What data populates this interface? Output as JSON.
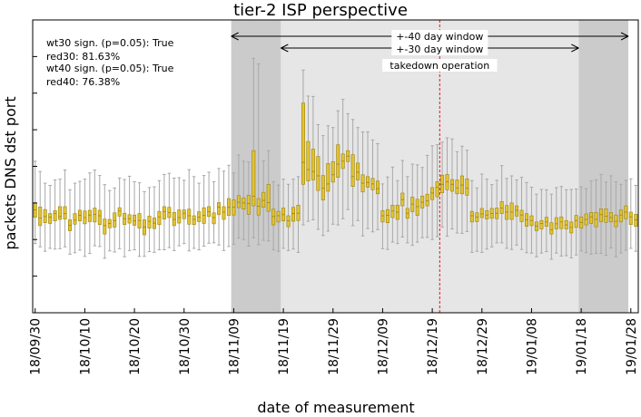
{
  "chart_data": {
    "type": "boxplot",
    "title": "tier-2 ISP perspective",
    "xlabel": "date of measurement",
    "ylabel": "packets DNS dst port",
    "x_tick_labels": [
      "18/09/30",
      "18/10/10",
      "18/10/20",
      "18/10/30",
      "18/11/09",
      "18/11/19",
      "18/11/29",
      "18/12/09",
      "18/12/19",
      "18/12/29",
      "19/01/08",
      "19/01/18",
      "19/01/28"
    ],
    "start_date": "2018-09-30",
    "days": 122,
    "ylim": [
      0,
      8
    ],
    "y_tick_values": [
      1,
      2,
      3,
      4,
      5,
      6,
      7,
      8
    ],
    "y_tick_labels_visible": false,
    "stats_text": [
      "wt30 sign. (p=0.05): True",
      "red30: 81.63%",
      "wt40 sign. (p=0.05): True",
      "red40: 76.38%"
    ],
    "windows": {
      "window_40": {
        "label": "+-40 day window",
        "start_day": 39.5,
        "end_day": 119.5
      },
      "window_30": {
        "label": "+-30 day window",
        "start_day": 49.5,
        "end_day": 109.5
      }
    },
    "event": {
      "label": "takedown operation",
      "day": 81.5
    },
    "colors": {
      "box_fill": "#e2c231",
      "box_edge": "#9a8410",
      "whisker": "#a8a8a8",
      "band_30": "#e6e6e6",
      "band_40_outer": "#cbcbcb",
      "event_line": "#e8161d"
    },
    "series": [
      {
        "day": 0,
        "q1": 2.61,
        "median": 2.81,
        "q3": 2.99,
        "low": 1.89,
        "high": 4.14
      },
      {
        "day": 1,
        "q1": 2.38,
        "median": 2.59,
        "q3": 2.89,
        "low": 1.8,
        "high": 3.86
      },
      {
        "day": 2,
        "q1": 2.46,
        "median": 2.63,
        "q3": 2.82,
        "low": 1.68,
        "high": 3.54
      },
      {
        "day": 3,
        "q1": 2.44,
        "median": 2.61,
        "q3": 2.71,
        "low": 1.76,
        "high": 3.48
      },
      {
        "day": 4,
        "q1": 2.51,
        "median": 2.71,
        "q3": 2.79,
        "low": 1.74,
        "high": 3.63
      },
      {
        "day": 5,
        "q1": 2.55,
        "median": 2.63,
        "q3": 2.9,
        "low": 1.75,
        "high": 3.65
      },
      {
        "day": 6,
        "q1": 2.56,
        "median": 2.71,
        "q3": 2.9,
        "low": 1.8,
        "high": 3.9
      },
      {
        "day": 7,
        "q1": 2.24,
        "median": 2.39,
        "q3": 2.54,
        "low": 1.6,
        "high": 3.36
      },
      {
        "day": 8,
        "q1": 2.42,
        "median": 2.53,
        "q3": 2.71,
        "low": 1.64,
        "high": 3.54
      },
      {
        "day": 9,
        "q1": 2.51,
        "median": 2.66,
        "q3": 2.8,
        "low": 1.71,
        "high": 3.59
      },
      {
        "day": 10,
        "q1": 2.43,
        "median": 2.6,
        "q3": 2.78,
        "low": 1.54,
        "high": 3.65
      },
      {
        "day": 11,
        "q1": 2.49,
        "median": 2.67,
        "q3": 2.8,
        "low": 1.62,
        "high": 3.82
      },
      {
        "day": 12,
        "q1": 2.48,
        "median": 2.69,
        "q3": 2.86,
        "low": 1.83,
        "high": 3.9
      },
      {
        "day": 13,
        "q1": 2.41,
        "median": 2.65,
        "q3": 2.8,
        "low": 1.81,
        "high": 3.75
      },
      {
        "day": 14,
        "q1": 2.15,
        "median": 2.38,
        "q3": 2.56,
        "low": 1.49,
        "high": 3.5
      },
      {
        "day": 15,
        "q1": 2.32,
        "median": 2.44,
        "q3": 2.55,
        "low": 1.69,
        "high": 3.34
      },
      {
        "day": 16,
        "q1": 2.34,
        "median": 2.52,
        "q3": 2.73,
        "low": 1.66,
        "high": 3.41
      },
      {
        "day": 17,
        "q1": 2.64,
        "median": 2.78,
        "q3": 2.87,
        "low": 1.75,
        "high": 3.68
      },
      {
        "day": 18,
        "q1": 2.41,
        "median": 2.57,
        "q3": 2.72,
        "low": 1.53,
        "high": 3.64
      },
      {
        "day": 19,
        "q1": 2.45,
        "median": 2.57,
        "q3": 2.68,
        "low": 1.7,
        "high": 3.73
      },
      {
        "day": 20,
        "q1": 2.39,
        "median": 2.51,
        "q3": 2.67,
        "low": 1.72,
        "high": 3.58
      },
      {
        "day": 21,
        "q1": 2.31,
        "median": 2.52,
        "q3": 2.71,
        "low": 1.54,
        "high": 3.55
      },
      {
        "day": 22,
        "q1": 2.13,
        "median": 2.34,
        "q3": 2.54,
        "low": 1.54,
        "high": 3.31
      },
      {
        "day": 23,
        "q1": 2.31,
        "median": 2.5,
        "q3": 2.64,
        "low": 1.67,
        "high": 3.42
      },
      {
        "day": 24,
        "q1": 2.3,
        "median": 2.45,
        "q3": 2.59,
        "low": 1.65,
        "high": 3.44
      },
      {
        "day": 25,
        "q1": 2.41,
        "median": 2.62,
        "q3": 2.77,
        "low": 1.72,
        "high": 3.61
      },
      {
        "day": 26,
        "q1": 2.56,
        "median": 2.77,
        "q3": 2.9,
        "low": 1.72,
        "high": 3.78
      },
      {
        "day": 27,
        "q1": 2.6,
        "median": 2.74,
        "q3": 2.88,
        "low": 1.78,
        "high": 3.81
      },
      {
        "day": 28,
        "q1": 2.38,
        "median": 2.55,
        "q3": 2.74,
        "low": 1.7,
        "high": 3.68
      },
      {
        "day": 29,
        "q1": 2.45,
        "median": 2.6,
        "q3": 2.81,
        "low": 1.83,
        "high": 3.69
      },
      {
        "day": 30,
        "q1": 2.57,
        "median": 2.72,
        "q3": 2.81,
        "low": 1.89,
        "high": 3.62
      },
      {
        "day": 31,
        "q1": 2.42,
        "median": 2.65,
        "q3": 2.83,
        "low": 1.69,
        "high": 3.91
      },
      {
        "day": 32,
        "q1": 2.41,
        "median": 2.55,
        "q3": 2.65,
        "low": 1.76,
        "high": 3.72
      },
      {
        "day": 33,
        "q1": 2.49,
        "median": 2.61,
        "q3": 2.76,
        "low": 1.72,
        "high": 3.54
      },
      {
        "day": 34,
        "q1": 2.44,
        "median": 2.66,
        "q3": 2.87,
        "low": 1.82,
        "high": 3.75
      },
      {
        "day": 35,
        "q1": 2.63,
        "median": 2.76,
        "q3": 2.9,
        "low": 1.9,
        "high": 3.84
      },
      {
        "day": 36,
        "q1": 2.43,
        "median": 2.6,
        "q3": 2.73,
        "low": 1.91,
        "high": 3.58
      },
      {
        "day": 37,
        "q1": 2.68,
        "median": 2.89,
        "q3": 3.01,
        "low": 1.85,
        "high": 3.94
      },
      {
        "day": 38,
        "q1": 2.55,
        "median": 2.75,
        "q3": 2.9,
        "low": 1.7,
        "high": 3.87
      },
      {
        "day": 39,
        "q1": 2.66,
        "median": 2.88,
        "q3": 3.12,
        "low": 1.81,
        "high": 4.03
      },
      {
        "day": 40,
        "q1": 2.67,
        "median": 2.88,
        "q3": 3.08,
        "low": 1.87,
        "high": 3.82
      },
      {
        "day": 41,
        "q1": 2.87,
        "median": 3.02,
        "q3": 3.2,
        "low": 2.04,
        "high": 4.31
      },
      {
        "day": 42,
        "q1": 2.83,
        "median": 3.0,
        "q3": 3.13,
        "low": 2.0,
        "high": 4.14
      },
      {
        "day": 43,
        "q1": 2.69,
        "median": 2.98,
        "q3": 3.21,
        "low": 1.82,
        "high": 4.12
      },
      {
        "day": 44,
        "q1": 2.92,
        "median": 3.18,
        "q3": 4.43,
        "low": 2.05,
        "high": 6.95
      },
      {
        "day": 45,
        "q1": 2.67,
        "median": 2.91,
        "q3": 3.12,
        "low": 1.86,
        "high": 6.8
      },
      {
        "day": 46,
        "q1": 2.88,
        "median": 3.07,
        "q3": 3.29,
        "low": 1.98,
        "high": 4.15
      },
      {
        "day": 47,
        "q1": 2.77,
        "median": 3.01,
        "q3": 3.51,
        "low": 1.96,
        "high": 4.43
      },
      {
        "day": 48,
        "q1": 2.4,
        "median": 2.63,
        "q3": 2.83,
        "low": 1.72,
        "high": 3.58
      },
      {
        "day": 49,
        "q1": 2.48,
        "median": 2.65,
        "q3": 2.77,
        "low": 1.68,
        "high": 3.49
      },
      {
        "day": 50,
        "q1": 2.51,
        "median": 2.68,
        "q3": 2.86,
        "low": 1.76,
        "high": 3.65
      },
      {
        "day": 51,
        "q1": 2.35,
        "median": 2.51,
        "q3": 2.65,
        "low": 1.7,
        "high": 3.51
      },
      {
        "day": 52,
        "q1": 2.5,
        "median": 2.71,
        "q3": 2.88,
        "low": 1.74,
        "high": 3.65
      },
      {
        "day": 53,
        "q1": 2.52,
        "median": 2.72,
        "q3": 2.94,
        "low": 1.65,
        "high": 3.72
      },
      {
        "day": 54,
        "q1": 3.51,
        "median": 4.11,
        "q3": 5.73,
        "low": 2.4,
        "high": 6.63
      },
      {
        "day": 55,
        "q1": 3.6,
        "median": 3.91,
        "q3": 4.68,
        "low": 2.5,
        "high": 5.92
      },
      {
        "day": 56,
        "q1": 3.63,
        "median": 3.86,
        "q3": 4.47,
        "low": 2.54,
        "high": 5.91
      },
      {
        "day": 57,
        "q1": 3.34,
        "median": 3.74,
        "q3": 4.27,
        "low": 2.28,
        "high": 5.14
      },
      {
        "day": 58,
        "q1": 3.08,
        "median": 3.4,
        "q3": 3.75,
        "low": 2.11,
        "high": 4.84
      },
      {
        "day": 59,
        "q1": 3.32,
        "median": 3.52,
        "q3": 4.08,
        "low": 2.23,
        "high": 5.11
      },
      {
        "day": 60,
        "q1": 3.57,
        "median": 3.77,
        "q3": 4.13,
        "low": 2.42,
        "high": 5.06
      },
      {
        "day": 61,
        "q1": 3.7,
        "median": 4.06,
        "q3": 4.59,
        "low": 2.4,
        "high": 5.52
      },
      {
        "day": 62,
        "q1": 3.94,
        "median": 4.14,
        "q3": 4.34,
        "low": 2.57,
        "high": 5.83
      },
      {
        "day": 63,
        "q1": 4.13,
        "median": 4.28,
        "q3": 4.43,
        "low": 2.82,
        "high": 5.44
      },
      {
        "day": 64,
        "q1": 3.45,
        "median": 3.72,
        "q3": 4.32,
        "low": 2.38,
        "high": 5.28
      },
      {
        "day": 65,
        "q1": 3.63,
        "median": 3.84,
        "q3": 4.09,
        "low": 2.52,
        "high": 5.06
      },
      {
        "day": 66,
        "q1": 3.3,
        "median": 3.54,
        "q3": 3.77,
        "low": 2.1,
        "high": 4.94
      },
      {
        "day": 67,
        "q1": 3.43,
        "median": 3.56,
        "q3": 3.72,
        "low": 2.3,
        "high": 4.94
      },
      {
        "day": 68,
        "q1": 3.36,
        "median": 3.52,
        "q3": 3.67,
        "low": 2.21,
        "high": 4.72
      },
      {
        "day": 69,
        "q1": 3.25,
        "median": 3.39,
        "q3": 3.6,
        "low": 2.27,
        "high": 4.62
      },
      {
        "day": 70,
        "q1": 2.48,
        "median": 2.65,
        "q3": 2.79,
        "low": 1.75,
        "high": 3.52
      },
      {
        "day": 71,
        "q1": 2.46,
        "median": 2.66,
        "q3": 2.82,
        "low": 1.73,
        "high": 3.71
      },
      {
        "day": 72,
        "q1": 2.6,
        "median": 2.78,
        "q3": 2.94,
        "low": 1.93,
        "high": 3.98
      },
      {
        "day": 73,
        "q1": 2.55,
        "median": 2.75,
        "q3": 2.94,
        "low": 1.89,
        "high": 3.61
      },
      {
        "day": 74,
        "q1": 2.92,
        "median": 3.09,
        "q3": 3.27,
        "low": 2.07,
        "high": 4.16
      },
      {
        "day": 75,
        "q1": 2.58,
        "median": 2.72,
        "q3": 2.85,
        "low": 1.91,
        "high": 3.72
      },
      {
        "day": 76,
        "q1": 2.76,
        "median": 2.97,
        "q3": 3.16,
        "low": 1.84,
        "high": 4.06
      },
      {
        "day": 77,
        "q1": 2.66,
        "median": 2.9,
        "q3": 3.1,
        "low": 1.93,
        "high": 4.04
      },
      {
        "day": 78,
        "q1": 2.86,
        "median": 3.02,
        "q3": 3.19,
        "low": 2.05,
        "high": 3.97
      },
      {
        "day": 79,
        "q1": 2.92,
        "median": 3.06,
        "q3": 3.24,
        "low": 2.06,
        "high": 4.3
      },
      {
        "day": 80,
        "q1": 3.09,
        "median": 3.27,
        "q3": 3.42,
        "low": 2.0,
        "high": 4.56
      },
      {
        "day": 81,
        "q1": 3.17,
        "median": 3.43,
        "q3": 3.58,
        "low": 2.08,
        "high": 4.59
      },
      {
        "day": 82,
        "q1": 3.28,
        "median": 3.51,
        "q3": 3.76,
        "low": 2.34,
        "high": 4.66
      },
      {
        "day": 83,
        "q1": 3.36,
        "median": 3.58,
        "q3": 3.78,
        "low": 2.09,
        "high": 4.78
      },
      {
        "day": 84,
        "q1": 3.32,
        "median": 3.51,
        "q3": 3.64,
        "low": 2.29,
        "high": 4.75
      },
      {
        "day": 85,
        "q1": 3.25,
        "median": 3.41,
        "q3": 3.63,
        "low": 2.18,
        "high": 4.4
      },
      {
        "day": 86,
        "q1": 3.25,
        "median": 3.49,
        "q3": 3.74,
        "low": 2.17,
        "high": 4.55
      },
      {
        "day": 87,
        "q1": 3.21,
        "median": 3.4,
        "q3": 3.66,
        "low": 2.22,
        "high": 4.44
      },
      {
        "day": 88,
        "q1": 2.48,
        "median": 2.65,
        "q3": 2.77,
        "low": 1.65,
        "high": 3.61
      },
      {
        "day": 89,
        "q1": 2.49,
        "median": 2.61,
        "q3": 2.73,
        "low": 1.68,
        "high": 3.41
      },
      {
        "day": 90,
        "q1": 2.6,
        "median": 2.7,
        "q3": 2.85,
        "low": 1.65,
        "high": 3.79
      },
      {
        "day": 91,
        "q1": 2.56,
        "median": 2.67,
        "q3": 2.79,
        "low": 1.74,
        "high": 3.65
      },
      {
        "day": 92,
        "q1": 2.58,
        "median": 2.71,
        "q3": 2.85,
        "low": 1.8,
        "high": 3.5
      },
      {
        "day": 93,
        "q1": 2.57,
        "median": 2.72,
        "q3": 2.86,
        "low": 1.91,
        "high": 3.62
      },
      {
        "day": 94,
        "q1": 2.71,
        "median": 2.86,
        "q3": 3.04,
        "low": 1.91,
        "high": 4.02
      },
      {
        "day": 95,
        "q1": 2.55,
        "median": 2.75,
        "q3": 2.93,
        "low": 1.76,
        "high": 3.67
      },
      {
        "day": 96,
        "q1": 2.55,
        "median": 2.75,
        "q3": 3.0,
        "low": 1.73,
        "high": 3.74
      },
      {
        "day": 97,
        "q1": 2.64,
        "median": 2.8,
        "q3": 2.92,
        "low": 1.85,
        "high": 3.63
      },
      {
        "day": 98,
        "q1": 2.49,
        "median": 2.67,
        "q3": 2.8,
        "low": 1.73,
        "high": 3.7
      },
      {
        "day": 99,
        "q1": 2.36,
        "median": 2.54,
        "q3": 2.71,
        "low": 1.64,
        "high": 3.56
      },
      {
        "day": 100,
        "q1": 2.38,
        "median": 2.52,
        "q3": 2.65,
        "low": 1.63,
        "high": 3.43
      },
      {
        "day": 101,
        "q1": 2.24,
        "median": 2.37,
        "q3": 2.48,
        "low": 1.53,
        "high": 3.24
      },
      {
        "day": 102,
        "q1": 2.29,
        "median": 2.44,
        "q3": 2.52,
        "low": 1.63,
        "high": 3.37
      },
      {
        "day": 103,
        "q1": 2.36,
        "median": 2.48,
        "q3": 2.61,
        "low": 1.67,
        "high": 3.36
      },
      {
        "day": 104,
        "q1": 2.15,
        "median": 2.27,
        "q3": 2.46,
        "low": 1.46,
        "high": 3.24
      },
      {
        "day": 105,
        "q1": 2.29,
        "median": 2.43,
        "q3": 2.6,
        "low": 1.63,
        "high": 3.42
      },
      {
        "day": 106,
        "q1": 2.3,
        "median": 2.48,
        "q3": 2.62,
        "low": 1.55,
        "high": 3.45
      },
      {
        "day": 107,
        "q1": 2.29,
        "median": 2.4,
        "q3": 2.52,
        "low": 1.56,
        "high": 3.36
      },
      {
        "day": 108,
        "q1": 2.18,
        "median": 2.33,
        "q3": 2.48,
        "low": 1.5,
        "high": 3.37
      },
      {
        "day": 109,
        "q1": 2.33,
        "median": 2.52,
        "q3": 2.66,
        "low": 1.58,
        "high": 3.38
      },
      {
        "day": 110,
        "q1": 2.31,
        "median": 2.47,
        "q3": 2.62,
        "low": 1.69,
        "high": 3.44
      },
      {
        "day": 111,
        "q1": 2.4,
        "median": 2.55,
        "q3": 2.7,
        "low": 1.64,
        "high": 3.39
      },
      {
        "day": 112,
        "q1": 2.44,
        "median": 2.62,
        "q3": 2.74,
        "low": 1.6,
        "high": 3.6
      },
      {
        "day": 113,
        "q1": 2.35,
        "median": 2.55,
        "q3": 2.74,
        "low": 1.62,
        "high": 3.63
      },
      {
        "day": 114,
        "q1": 2.49,
        "median": 2.68,
        "q3": 2.84,
        "low": 1.62,
        "high": 3.78
      },
      {
        "day": 115,
        "q1": 2.47,
        "median": 2.64,
        "q3": 2.84,
        "low": 1.57,
        "high": 3.57
      },
      {
        "day": 116,
        "q1": 2.48,
        "median": 2.6,
        "q3": 2.74,
        "low": 1.77,
        "high": 3.74
      },
      {
        "day": 117,
        "q1": 2.35,
        "median": 2.5,
        "q3": 2.67,
        "low": 1.53,
        "high": 3.58
      },
      {
        "day": 118,
        "q1": 2.48,
        "median": 2.67,
        "q3": 2.81,
        "low": 1.63,
        "high": 3.51
      },
      {
        "day": 119,
        "q1": 2.57,
        "median": 2.75,
        "q3": 2.92,
        "low": 1.71,
        "high": 3.62
      },
      {
        "day": 120,
        "q1": 2.41,
        "median": 2.62,
        "q3": 2.75,
        "low": 1.76,
        "high": 3.66
      },
      {
        "day": 121,
        "q1": 2.36,
        "median": 2.54,
        "q3": 2.69,
        "low": 1.68,
        "high": 3.48
      }
    ]
  }
}
